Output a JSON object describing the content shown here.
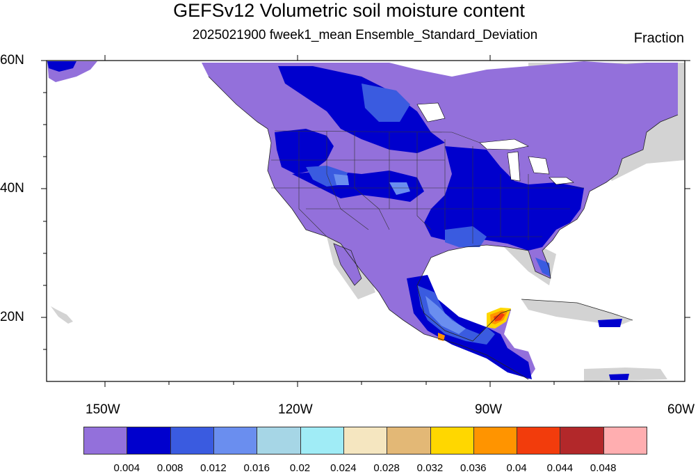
{
  "title": "GEFSv12 Volumetric soil moisture content",
  "subtitle": "2025021900 fweek1_mean Ensemble_Standard_Deviation",
  "units": "Fraction",
  "map": {
    "projection": "cylindrical-equidistant",
    "lon_range": [
      -160,
      -60
    ],
    "lat_range": [
      10,
      60
    ],
    "lat_labels": [
      "60N",
      "40N",
      "20N"
    ],
    "lon_labels": [
      "150W",
      "120W",
      "90W",
      "60W"
    ]
  },
  "colorbar": {
    "colors": [
      "#9370DB",
      "#0000CD",
      "#3A5BE0",
      "#6A8EEF",
      "#A6D6E6",
      "#A0ECF6",
      "#F5E6C0",
      "#E3B876",
      "#FFD700",
      "#FF9400",
      "#F23C0C",
      "#B2282A",
      "#FFAEB0"
    ],
    "labels": [
      "0.004",
      "0.008",
      "0.012",
      "0.016",
      "0.02",
      "0.024",
      "0.028",
      "0.032",
      "0.036",
      "0.04",
      "0.044",
      "0.048"
    ]
  }
}
